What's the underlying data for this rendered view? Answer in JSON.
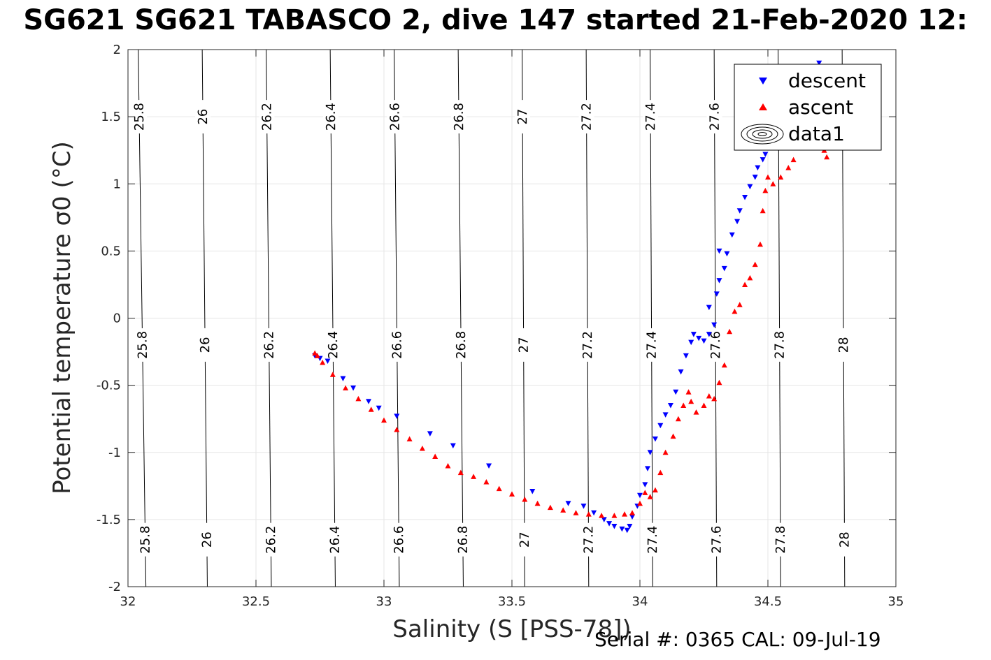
{
  "title": "SG621 SG621 TABASCO 2, dive 147 started 21-Feb-2020 12:",
  "footer": "Serial #: 0365  CAL: 09-Jul-19",
  "chart_data": {
    "type": "scatter",
    "title": "SG621 SG621 TABASCO 2, dive 147 started 21-Feb-2020 12:",
    "xlabel": "Salinity (S [PSS-78])",
    "ylabel": "Potential temperature σ0 (°C)",
    "xlim": [
      32,
      35
    ],
    "ylim": [
      -2,
      2
    ],
    "xticks": [
      "32",
      "32.5",
      "33",
      "33.5",
      "34",
      "34.5",
      "35"
    ],
    "yticks": [
      "-2",
      "-1.5",
      "-1",
      "-0.5",
      "0",
      "0.5",
      "1",
      "1.5",
      "2"
    ],
    "grid": true,
    "legend": {
      "position": "top-right",
      "entries": [
        "descent",
        "ascent",
        "data1"
      ]
    },
    "isopycnals": [
      {
        "label": "25.8",
        "s_at_top": 32.04,
        "s_at_bottom": 32.07
      },
      {
        "label": "26",
        "s_at_top": 32.29,
        "s_at_bottom": 32.31
      },
      {
        "label": "26.2",
        "s_at_top": 32.54,
        "s_at_bottom": 32.56
      },
      {
        "label": "26.4",
        "s_at_top": 32.79,
        "s_at_bottom": 32.81
      },
      {
        "label": "26.6",
        "s_at_top": 33.04,
        "s_at_bottom": 33.06
      },
      {
        "label": "26.8",
        "s_at_top": 33.29,
        "s_at_bottom": 33.31
      },
      {
        "label": "27",
        "s_at_top": 33.54,
        "s_at_bottom": 33.55
      },
      {
        "label": "27.2",
        "s_at_top": 33.79,
        "s_at_bottom": 33.8
      },
      {
        "label": "27.4",
        "s_at_top": 34.04,
        "s_at_bottom": 34.05
      },
      {
        "label": "27.6",
        "s_at_top": 34.29,
        "s_at_bottom": 34.3
      },
      {
        "label": "27.8",
        "s_at_top": 34.54,
        "s_at_bottom": 34.55
      },
      {
        "label": "28",
        "s_at_top": 34.79,
        "s_at_bottom": 34.8
      }
    ],
    "series": [
      {
        "name": "descent",
        "color": "#0000ff",
        "marker": "triangle-down",
        "x": [
          32.73,
          32.75,
          32.78,
          32.84,
          32.88,
          32.94,
          32.98,
          33.05,
          33.18,
          33.27,
          33.41,
          33.58,
          33.72,
          33.78,
          33.82,
          33.86,
          33.88,
          33.9,
          33.93,
          33.95,
          33.96,
          33.97,
          33.99,
          34.0,
          34.02,
          34.03,
          34.04,
          34.06,
          34.08,
          34.1,
          34.12,
          34.14,
          34.16,
          34.18,
          34.2,
          34.21,
          34.23,
          34.25,
          34.27,
          34.29,
          34.27,
          34.3,
          34.31,
          34.33,
          34.31,
          34.34,
          34.36,
          34.38,
          34.39,
          34.41,
          34.43,
          34.45,
          34.46,
          34.48,
          34.49,
          34.55,
          34.68,
          34.7,
          34.72,
          34.73
        ],
        "y": [
          -0.28,
          -0.3,
          -0.32,
          -0.45,
          -0.52,
          -0.62,
          -0.67,
          -0.73,
          -0.86,
          -0.95,
          -1.1,
          -1.29,
          -1.38,
          -1.4,
          -1.45,
          -1.5,
          -1.53,
          -1.55,
          -1.57,
          -1.58,
          -1.55,
          -1.48,
          -1.4,
          -1.32,
          -1.24,
          -1.12,
          -1.0,
          -0.9,
          -0.8,
          -0.72,
          -0.65,
          -0.55,
          -0.4,
          -0.28,
          -0.18,
          -0.12,
          -0.15,
          -0.17,
          -0.12,
          -0.05,
          0.08,
          0.18,
          0.28,
          0.37,
          0.5,
          0.48,
          0.62,
          0.72,
          0.8,
          0.9,
          0.98,
          1.05,
          1.12,
          1.18,
          1.22,
          1.5,
          1.87,
          1.9,
          1.78,
          1.65
        ]
      },
      {
        "name": "ascent",
        "color": "#ff0000",
        "marker": "triangle-up",
        "x": [
          32.73,
          32.74,
          32.76,
          32.8,
          32.85,
          32.9,
          32.95,
          33.0,
          33.05,
          33.1,
          33.15,
          33.2,
          33.25,
          33.3,
          33.35,
          33.4,
          33.45,
          33.5,
          33.55,
          33.6,
          33.65,
          33.7,
          33.75,
          33.8,
          33.85,
          33.9,
          33.94,
          33.97,
          34.0,
          34.02,
          34.04,
          34.06,
          34.08,
          34.1,
          34.13,
          34.15,
          34.17,
          34.19,
          34.2,
          34.22,
          34.25,
          34.27,
          34.29,
          34.31,
          34.33,
          34.35,
          34.37,
          34.39,
          34.41,
          34.43,
          34.45,
          34.47,
          34.48,
          34.49,
          34.5,
          34.52,
          34.55,
          34.58,
          34.6,
          34.72,
          34.73
        ],
        "y": [
          -0.26,
          -0.28,
          -0.33,
          -0.42,
          -0.52,
          -0.6,
          -0.68,
          -0.76,
          -0.83,
          -0.9,
          -0.97,
          -1.03,
          -1.1,
          -1.15,
          -1.18,
          -1.22,
          -1.27,
          -1.31,
          -1.35,
          -1.38,
          -1.41,
          -1.43,
          -1.45,
          -1.46,
          -1.47,
          -1.47,
          -1.46,
          -1.45,
          -1.38,
          -1.3,
          -1.33,
          -1.28,
          -1.15,
          -1.0,
          -0.88,
          -0.75,
          -0.65,
          -0.55,
          -0.62,
          -0.7,
          -0.65,
          -0.58,
          -0.6,
          -0.48,
          -0.35,
          -0.1,
          0.05,
          0.1,
          0.25,
          0.3,
          0.4,
          0.55,
          0.8,
          0.95,
          1.05,
          1.0,
          1.05,
          1.12,
          1.18,
          1.25,
          1.2
        ]
      }
    ]
  }
}
